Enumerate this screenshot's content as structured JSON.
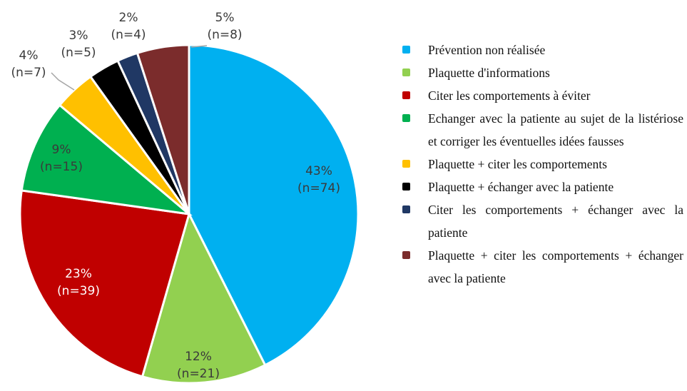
{
  "chart_data": {
    "type": "pie",
    "categories": [
      "Prévention non réalisée",
      "Plaquette d'informations",
      "Citer les comportements à éviter",
      "Echanger avec la patiente au sujet de la listériose et corriger les éventuelles idées fausses",
      "Plaquette + citer les comportements",
      "Plaquette + échanger avec la patiente",
      "Citer les comportements + échanger avec la patiente",
      "Plaquette + citer les comportements + échanger avec la patiente"
    ],
    "values": [
      43,
      12,
      23,
      9,
      4,
      3,
      2,
      5
    ],
    "value_labels": [
      "43%",
      "12%",
      "23%",
      "9%",
      "4%",
      "3%",
      "2%",
      "5%"
    ],
    "count_labels": [
      "(n=74)",
      "(n=21)",
      "(n=39)",
      "(n=15)",
      "(n=7)",
      "(n=5)",
      "(n=4)",
      "(n=8)"
    ],
    "colors": [
      "#00b0f0",
      "#92d050",
      "#c00000",
      "#00b050",
      "#ffc000",
      "#000000",
      "#203864",
      "#7b2c2c"
    ],
    "legend": "right"
  }
}
